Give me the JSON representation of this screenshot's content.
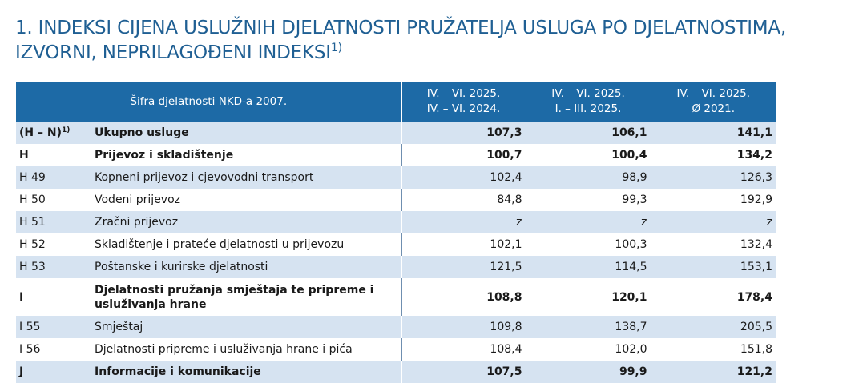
{
  "title": {
    "line1": "1. INDEKSI CIJENA USLUŽNIH DJELATNOSTI PRUŽATELJA USLUGA PO DJELATNOSTIMA,",
    "line2": "IZVORNI, NEPRILAGOĐENI INDEKSI",
    "footnote_mark": "1)"
  },
  "table": {
    "header": {
      "code_label": "Šifra djelatnosti NKD-a 2007.",
      "columns": [
        {
          "top": "IV. – VI. 2025.",
          "bottom": "IV. – VI. 2024."
        },
        {
          "top": "IV. – VI. 2025.",
          "bottom": "I. – III. 2025."
        },
        {
          "top": "IV. – VI. 2025.",
          "bottom": "Ø 2021."
        }
      ]
    },
    "rows": [
      {
        "code": "(H – N)",
        "code_sup": "1)",
        "name": "Ukupno usluge",
        "v1": "107,3",
        "v2": "106,1",
        "v3": "141,1"
      },
      {
        "code": "H",
        "code_sup": "",
        "name": "Prijevoz i skladištenje",
        "v1": "100,7",
        "v2": "100,4",
        "v3": "134,2"
      },
      {
        "code": "H 49",
        "code_sup": "",
        "name": "Kopneni prijevoz i cjevovodni transport",
        "v1": "102,4",
        "v2": "98,9",
        "v3": "126,3"
      },
      {
        "code": "H 50",
        "code_sup": "",
        "name": "Vodeni prijevoz",
        "v1": "84,8",
        "v2": "99,3",
        "v3": "192,9"
      },
      {
        "code": "H 51",
        "code_sup": "",
        "name": "Zračni prijevoz",
        "v1": "z",
        "v2": "z",
        "v3": "z"
      },
      {
        "code": "H 52",
        "code_sup": "",
        "name": "Skladištenje i prateće djelatnosti u prijevozu",
        "v1": "102,1",
        "v2": "100,3",
        "v3": "132,4"
      },
      {
        "code": "H 53",
        "code_sup": "",
        "name": "Poštanske i kurirske djelatnosti",
        "v1": "121,5",
        "v2": "114,5",
        "v3": "153,1"
      },
      {
        "code": "I",
        "code_sup": "",
        "name_line1": "Djelatnosti pružanja smještaja te pripreme i",
        "name_line2": "usluživanja hrane",
        "v1": "108,8",
        "v2": "120,1",
        "v3": "178,4"
      },
      {
        "code": "I 55",
        "code_sup": "",
        "name": "Smještaj",
        "v1": "109,8",
        "v2": "138,7",
        "v3": "205,5"
      },
      {
        "code": "I 56",
        "code_sup": "",
        "name": "Djelatnosti pripreme i usluživanja hrane i pića",
        "v1": "108,4",
        "v2": "102,0",
        "v3": "151,8"
      },
      {
        "code": "J",
        "code_sup": "",
        "name": "Informacije i komunikacije",
        "v1": "107,5",
        "v2": "99,9",
        "v3": "121,2"
      }
    ]
  },
  "colors": {
    "title": "#1f5f93",
    "header_bg": "#1d6aa6",
    "row_shade": "#d6e3f1"
  }
}
